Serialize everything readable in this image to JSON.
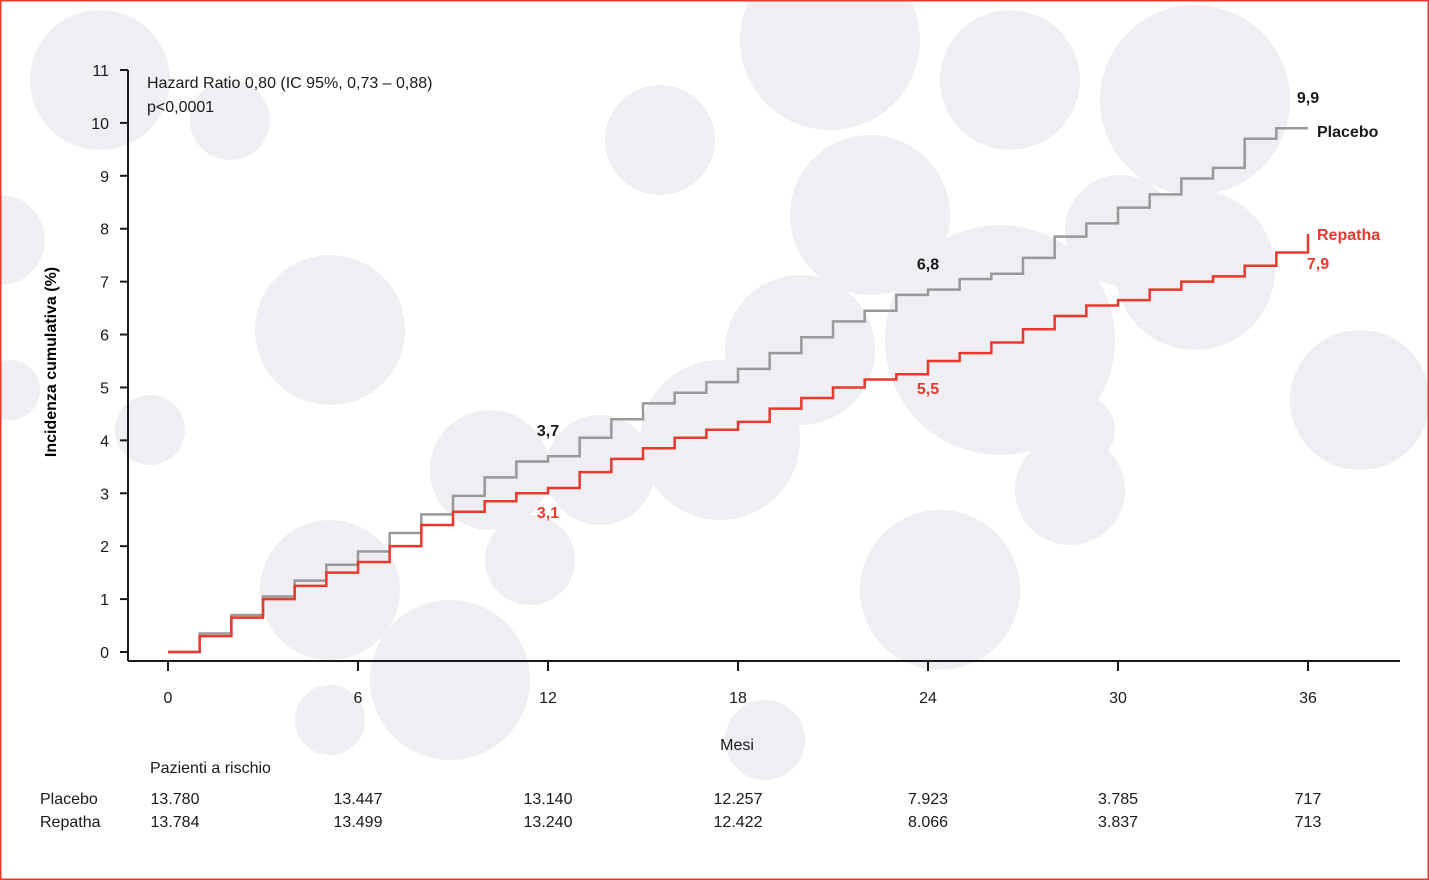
{
  "colors": {
    "frame": "#e8392e",
    "placebo": "#999999",
    "repatha": "#e8392e",
    "placebo_label": "#1a1a1a",
    "repatha_label": "#e8392e",
    "background_blobs": "#eeeef3"
  },
  "chart_data": {
    "type": "line",
    "title": "",
    "xlabel": "Mesi",
    "ylabel": "Incidenza cumulativa (%)",
    "xlim": [
      0,
      36
    ],
    "ylim": [
      0,
      11
    ],
    "x_ticks": [
      0,
      6,
      12,
      18,
      24,
      30,
      36
    ],
    "y_ticks": [
      0,
      1,
      2,
      3,
      4,
      5,
      6,
      7,
      8,
      9,
      10,
      11
    ],
    "grid": false,
    "annotation": [
      "Hazard Ratio 0,80 (IC 95%, 0,73 – 0,88)",
      "p<0,0001"
    ],
    "series": [
      {
        "name": "Placebo",
        "style": "step",
        "x": [
          0,
          1,
          2,
          3,
          4,
          5,
          6,
          7,
          8,
          9,
          10,
          11,
          12,
          13,
          14,
          15,
          16,
          17,
          18,
          19,
          20,
          21,
          22,
          23,
          24,
          25,
          26,
          27,
          28,
          29,
          30,
          31,
          32,
          33,
          34,
          35,
          36
        ],
        "values": [
          0.0,
          0.35,
          0.7,
          1.05,
          1.35,
          1.65,
          1.9,
          2.25,
          2.6,
          2.95,
          3.3,
          3.6,
          3.7,
          4.05,
          4.4,
          4.7,
          4.9,
          5.1,
          5.35,
          5.65,
          5.95,
          6.25,
          6.45,
          6.75,
          6.85,
          7.05,
          7.15,
          7.45,
          7.85,
          8.1,
          8.4,
          8.65,
          8.95,
          9.15,
          9.7,
          9.9,
          9.9
        ],
        "end_label": "9,9",
        "marked": [
          {
            "x": 12,
            "label": "3,7"
          },
          {
            "x": 24,
            "label": "6,8"
          }
        ]
      },
      {
        "name": "Repatha",
        "style": "step",
        "x": [
          0,
          1,
          2,
          3,
          4,
          5,
          6,
          7,
          8,
          9,
          10,
          11,
          12,
          13,
          14,
          15,
          16,
          17,
          18,
          19,
          20,
          21,
          22,
          23,
          24,
          25,
          26,
          27,
          28,
          29,
          30,
          31,
          32,
          33,
          34,
          35,
          36
        ],
        "values": [
          0.0,
          0.3,
          0.65,
          1.0,
          1.25,
          1.5,
          1.7,
          2.0,
          2.4,
          2.65,
          2.85,
          3.0,
          3.1,
          3.4,
          3.65,
          3.85,
          4.05,
          4.2,
          4.35,
          4.6,
          4.8,
          5.0,
          5.15,
          5.25,
          5.5,
          5.65,
          5.85,
          6.1,
          6.35,
          6.55,
          6.65,
          6.85,
          7.0,
          7.1,
          7.3,
          7.55,
          7.9
        ],
        "end_label": "7,9",
        "marked": [
          {
            "x": 12,
            "label": "3,1"
          },
          {
            "x": 24,
            "label": "5,5"
          }
        ]
      }
    ]
  },
  "risk_table": {
    "heading": "Pazienti a rischio",
    "rows": [
      {
        "label": "Placebo",
        "values": [
          "13.780",
          "13.447",
          "13.140",
          "12.257",
          "7.923",
          "3.785",
          "717"
        ]
      },
      {
        "label": "Repatha",
        "values": [
          "13.784",
          "13.499",
          "13.240",
          "12.422",
          "8.066",
          "3.837",
          "713"
        ]
      }
    ]
  }
}
